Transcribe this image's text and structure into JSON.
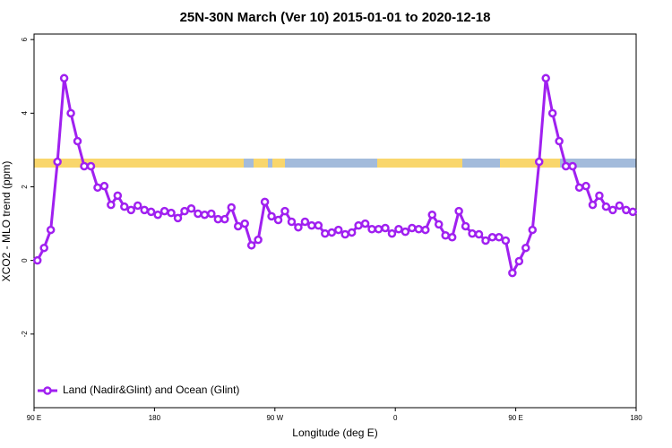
{
  "chart_data": {
    "type": "line",
    "title": "25N-30N March (Ver 10)   2015-01-01 to 2020-12-18",
    "x_label": "Longitude (deg E)",
    "y_label": "XCO2 - MLO trend (ppm)",
    "xlim": [
      90,
      540
    ],
    "ylim": [
      -4,
      6.15
    ],
    "xticks": [
      {
        "value": 90,
        "label": "90 E"
      },
      180,
      {
        "value": 270,
        "label": "90 W"
      },
      {
        "value": 360,
        "label": "0"
      },
      {
        "value": 450,
        "label": "90 E"
      },
      {
        "value": 540,
        "label": "180"
      }
    ],
    "yticks": [
      -2,
      0,
      2,
      4,
      6
    ],
    "legend": "bottom-left",
    "x": [
      92.5,
      97.5,
      102.5,
      107.5,
      112.5,
      117.5,
      122.5,
      127.5,
      132.5,
      137.5,
      142.5,
      147.5,
      152.5,
      157.5,
      162.5,
      167.5,
      172.5,
      177.5,
      182.5,
      187.5,
      192.5,
      197.5,
      202.5,
      207.5,
      212.5,
      217.5,
      222.5,
      227.5,
      232.5,
      237.5,
      242.5,
      247.5,
      252.5,
      257.5,
      262.5,
      267.5,
      272.5,
      277.5,
      282.5,
      287.5,
      292.5,
      297.5,
      302.5,
      307.5,
      312.5,
      317.5,
      322.5,
      327.5,
      332.5,
      337.5,
      342.5,
      347.5,
      352.5,
      357.5,
      362.5,
      367.5,
      372.5,
      377.5,
      382.5,
      387.5,
      392.5,
      397.5,
      402.5,
      407.5,
      412.5,
      417.5,
      422.5,
      427.5,
      432.5,
      437.5,
      442.5,
      447.5,
      452.5,
      457.5,
      462.5,
      467.5,
      472.5,
      477.5,
      482.5,
      487.5,
      492.5,
      497.5,
      502.5,
      507.5,
      512.5,
      517.5,
      522.5,
      527.5,
      532.5,
      537.5
    ],
    "series": [
      {
        "name": "Land (Nadir&Glint) and Ocean (Glint)",
        "color": "#a020f0",
        "values": [
          0.0,
          0.34,
          0.83,
          2.68,
          4.95,
          4.0,
          3.24,
          2.56,
          2.56,
          1.98,
          2.02,
          1.51,
          1.76,
          1.46,
          1.37,
          1.49,
          1.37,
          1.32,
          1.24,
          1.34,
          1.29,
          1.15,
          1.34,
          1.41,
          1.27,
          1.24,
          1.27,
          1.12,
          1.12,
          1.44,
          0.93,
          1.0,
          0.41,
          0.56,
          1.59,
          1.2,
          1.1,
          1.34,
          1.05,
          0.9,
          1.05,
          0.95,
          0.95,
          0.73,
          0.76,
          0.83,
          0.71,
          0.76,
          0.95,
          1.0,
          0.85,
          0.85,
          0.88,
          0.73,
          0.85,
          0.78,
          0.88,
          0.85,
          0.83,
          1.24,
          0.98,
          0.68,
          0.63,
          1.34,
          0.93,
          0.73,
          0.71,
          0.54,
          0.63,
          0.63,
          0.54,
          -0.34,
          -0.02,
          0.34,
          0.83,
          2.68,
          4.95,
          4.0,
          3.24,
          2.56,
          2.56,
          1.98,
          2.02,
          1.51,
          1.76,
          1.46,
          1.37,
          1.49,
          1.37,
          1.32
        ]
      }
    ]
  }
}
